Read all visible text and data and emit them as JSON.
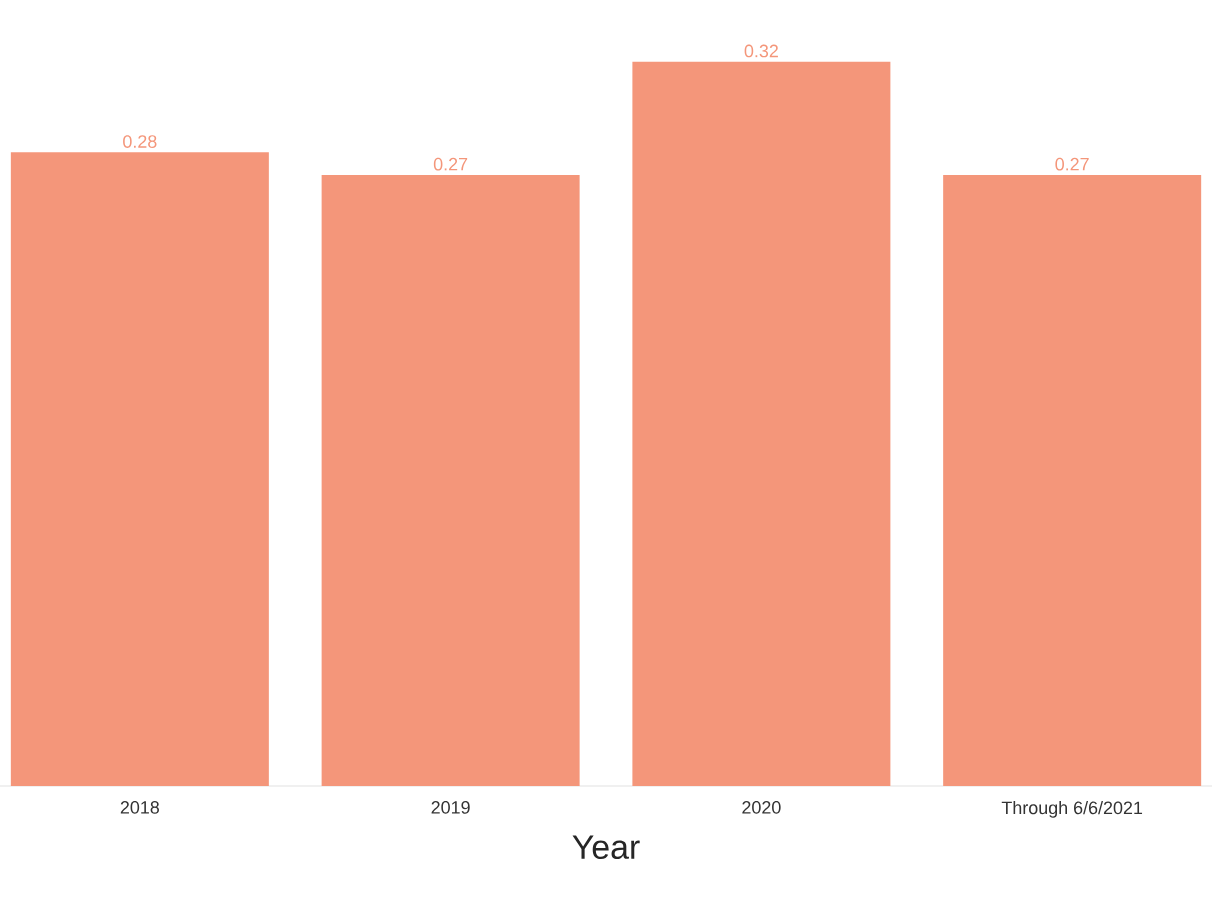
{
  "chart_data": {
    "type": "bar",
    "xlabel": "Year",
    "categories": [
      "2018",
      "2019",
      "2020",
      "Through 6/6/2021"
    ],
    "values": [
      0.28,
      0.27,
      0.32,
      0.27
    ],
    "color": "#f4967a",
    "data_labels": true
  }
}
